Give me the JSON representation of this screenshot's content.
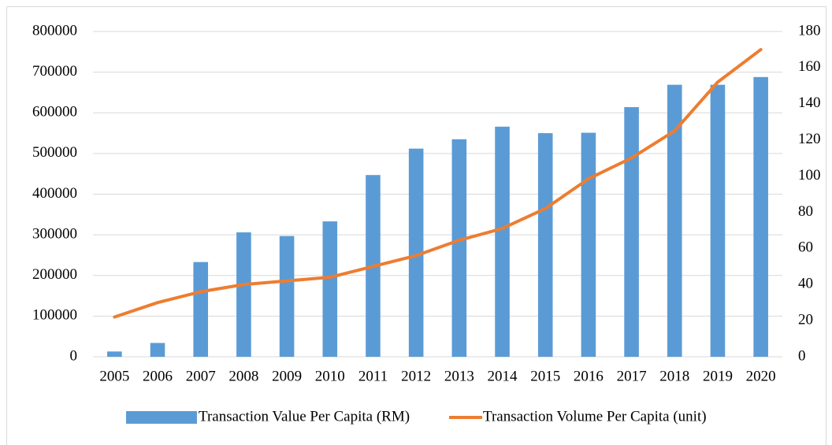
{
  "chart_data": {
    "type": "bar",
    "categories": [
      "2005",
      "2006",
      "2007",
      "2008",
      "2009",
      "2010",
      "2011",
      "2012",
      "2013",
      "2014",
      "2015",
      "2016",
      "2017",
      "2018",
      "2019",
      "2020"
    ],
    "series": [
      {
        "name": "Transaction Value Per Capita (RM)",
        "type": "bar",
        "color": "#5b9bd5",
        "values": [
          13000,
          34000,
          233000,
          306000,
          297000,
          333000,
          447000,
          512000,
          535000,
          566000,
          550000,
          551000,
          614000,
          669000,
          669000,
          688000
        ]
      },
      {
        "name": "Transaction Volume Per Capita (unit)",
        "type": "line",
        "axis": "y2",
        "color": "#ed7d31",
        "values": [
          22,
          30,
          36,
          40,
          42,
          44,
          50,
          56,
          64.5,
          71,
          82,
          98.5,
          110,
          125,
          152,
          170
        ]
      }
    ],
    "ylim": [
      0,
      800000
    ],
    "yticks": [
      0,
      100000,
      200000,
      300000,
      400000,
      500000,
      600000,
      700000,
      800000
    ],
    "y2lim": [
      0,
      180
    ],
    "y2ticks": [
      0,
      20,
      40,
      60,
      80,
      100,
      120,
      140,
      160,
      180
    ],
    "grid": true,
    "legend": "bottom"
  }
}
